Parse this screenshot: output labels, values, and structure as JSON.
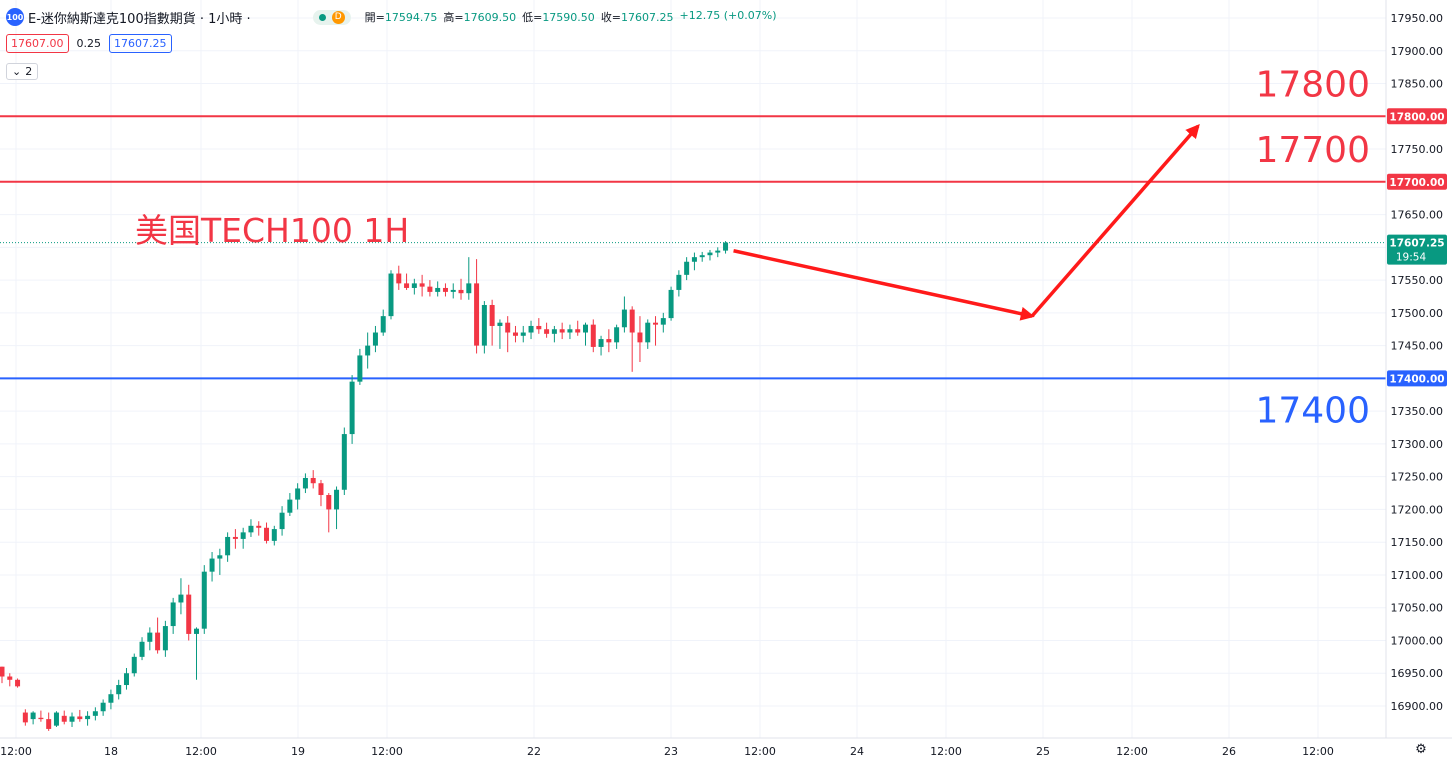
{
  "header": {
    "symbol_icon": "100",
    "title": "E-迷你納斯達克100指數期貨 · 1小時 ·",
    "status_letter": "D",
    "ohlc": {
      "open_label": "開=",
      "open": "17594.75",
      "high_label": "高=",
      "high": "17609.50",
      "low_label": "低=",
      "low": "17590.50",
      "close_label": "收=",
      "close": "17607.25",
      "change": "+12.75 (+0.07%)"
    },
    "bid": "17607.00",
    "spread": "0.25",
    "ask": "17607.25",
    "indicators_count": "2"
  },
  "colors": {
    "up": "#089981",
    "down": "#f23645",
    "resistance": "#f23645",
    "support": "#2962ff",
    "arrow": "#ff1a1a"
  },
  "chart_data": {
    "type": "candlestick",
    "title": "美国TECH100 1H",
    "ylim": [
      16860,
      17975
    ],
    "yticks": [
      16900,
      16950,
      17000,
      17050,
      17100,
      17150,
      17200,
      17250,
      17300,
      17350,
      17400,
      17450,
      17500,
      17550,
      17600,
      17650,
      17700,
      17750,
      17800,
      17850,
      17900,
      17950
    ],
    "x_labels": [
      "12:00",
      "18",
      "12:00",
      "19",
      "12:00",
      "22",
      "23",
      "12:00",
      "24",
      "12:00",
      "25",
      "12:00",
      "26",
      "12:00"
    ],
    "last_price": "17607.25",
    "countdown": "19:54",
    "levels": [
      {
        "value": 17800,
        "axis_label": "17800.00",
        "annotation": "17800",
        "kind": "resistance"
      },
      {
        "value": 17700,
        "axis_label": "17700.00",
        "annotation": "17700",
        "kind": "resistance"
      },
      {
        "value": 17400,
        "axis_label": "17400.00",
        "annotation": "17400",
        "kind": "support"
      }
    ],
    "forecast_path": [
      17607,
      17495,
      17785
    ],
    "candles": [
      [
        16960,
        16960,
        16935,
        16945
      ],
      [
        16945,
        16950,
        16930,
        16940
      ],
      [
        16940,
        16942,
        16928,
        16930
      ],
      [
        16890,
        16895,
        16870,
        16875
      ],
      [
        16880,
        16892,
        16872,
        16890
      ],
      [
        16882,
        16893,
        16876,
        16880
      ],
      [
        16880,
        16890,
        16862,
        16865
      ],
      [
        16870,
        16892,
        16868,
        16890
      ],
      [
        16885,
        16893,
        16872,
        16876
      ],
      [
        16876,
        16890,
        16868,
        16884
      ],
      [
        16884,
        16894,
        16876,
        16880
      ],
      [
        16880,
        16892,
        16870,
        16885
      ],
      [
        16885,
        16898,
        16878,
        16892
      ],
      [
        16892,
        16910,
        16885,
        16905
      ],
      [
        16905,
        16925,
        16895,
        16918
      ],
      [
        16918,
        16940,
        16910,
        16932
      ],
      [
        16932,
        16958,
        16925,
        16950
      ],
      [
        16950,
        16980,
        16945,
        16975
      ],
      [
        16975,
        17005,
        16970,
        16998
      ],
      [
        16998,
        17020,
        16985,
        17012
      ],
      [
        17012,
        17035,
        16980,
        16985
      ],
      [
        16985,
        17030,
        16975,
        17022
      ],
      [
        17022,
        17065,
        17010,
        17058
      ],
      [
        17058,
        17095,
        17040,
        17070
      ],
      [
        17070,
        17085,
        17000,
        17010
      ],
      [
        17010,
        17020,
        16940,
        17018
      ],
      [
        17018,
        17115,
        17010,
        17105
      ],
      [
        17105,
        17135,
        17090,
        17125
      ],
      [
        17125,
        17140,
        17100,
        17130
      ],
      [
        17130,
        17165,
        17120,
        17158
      ],
      [
        17158,
        17170,
        17140,
        17155
      ],
      [
        17155,
        17172,
        17140,
        17165
      ],
      [
        17165,
        17185,
        17158,
        17175
      ],
      [
        17175,
        17182,
        17160,
        17172
      ],
      [
        17172,
        17180,
        17148,
        17152
      ],
      [
        17152,
        17175,
        17145,
        17170
      ],
      [
        17170,
        17205,
        17160,
        17195
      ],
      [
        17195,
        17225,
        17190,
        17215
      ],
      [
        17215,
        17240,
        17200,
        17232
      ],
      [
        17232,
        17255,
        17225,
        17248
      ],
      [
        17248,
        17260,
        17232,
        17240
      ],
      [
        17240,
        17245,
        17205,
        17222
      ],
      [
        17222,
        17225,
        17165,
        17200
      ],
      [
        17200,
        17235,
        17170,
        17230
      ],
      [
        17230,
        17325,
        17222,
        17315
      ],
      [
        17315,
        17405,
        17300,
        17395
      ],
      [
        17395,
        17445,
        17390,
        17435
      ],
      [
        17435,
        17470,
        17415,
        17450
      ],
      [
        17450,
        17480,
        17440,
        17470
      ],
      [
        17470,
        17505,
        17465,
        17495
      ],
      [
        17495,
        17565,
        17490,
        17560
      ],
      [
        17560,
        17572,
        17535,
        17545
      ],
      [
        17545,
        17560,
        17535,
        17538
      ],
      [
        17538,
        17552,
        17528,
        17545
      ],
      [
        17545,
        17558,
        17525,
        17540
      ],
      [
        17540,
        17550,
        17525,
        17532
      ],
      [
        17532,
        17548,
        17525,
        17538
      ],
      [
        17538,
        17545,
        17525,
        17532
      ],
      [
        17532,
        17545,
        17522,
        17535
      ],
      [
        17535,
        17552,
        17520,
        17530
      ],
      [
        17530,
        17585,
        17520,
        17545
      ],
      [
        17545,
        17582,
        17438,
        17450
      ],
      [
        17450,
        17518,
        17438,
        17512
      ],
      [
        17512,
        17520,
        17450,
        17480
      ],
      [
        17480,
        17490,
        17445,
        17485
      ],
      [
        17485,
        17495,
        17440,
        17470
      ],
      [
        17470,
        17480,
        17455,
        17465
      ],
      [
        17465,
        17480,
        17455,
        17470
      ],
      [
        17470,
        17488,
        17460,
        17480
      ],
      [
        17480,
        17492,
        17468,
        17475
      ],
      [
        17475,
        17485,
        17462,
        17468
      ],
      [
        17468,
        17480,
        17455,
        17475
      ],
      [
        17475,
        17485,
        17460,
        17470
      ],
      [
        17470,
        17482,
        17460,
        17475
      ],
      [
        17475,
        17488,
        17465,
        17470
      ],
      [
        17470,
        17485,
        17450,
        17482
      ],
      [
        17482,
        17490,
        17440,
        17448
      ],
      [
        17448,
        17465,
        17435,
        17460
      ],
      [
        17460,
        17475,
        17440,
        17455
      ],
      [
        17455,
        17482,
        17445,
        17478
      ],
      [
        17478,
        17525,
        17470,
        17505
      ],
      [
        17505,
        17510,
        17410,
        17470
      ],
      [
        17470,
        17495,
        17425,
        17455
      ],
      [
        17455,
        17490,
        17445,
        17485
      ],
      [
        17485,
        17495,
        17450,
        17482
      ],
      [
        17482,
        17500,
        17470,
        17492
      ],
      [
        17492,
        17540,
        17488,
        17535
      ],
      [
        17535,
        17565,
        17525,
        17558
      ],
      [
        17558,
        17585,
        17550,
        17578
      ],
      [
        17578,
        17592,
        17565,
        17585
      ],
      [
        17585,
        17593,
        17578,
        17588
      ],
      [
        17588,
        17596,
        17580,
        17592
      ],
      [
        17592,
        17600,
        17585,
        17595
      ],
      [
        17595,
        17609.5,
        17590.5,
        17607.25
      ]
    ]
  }
}
